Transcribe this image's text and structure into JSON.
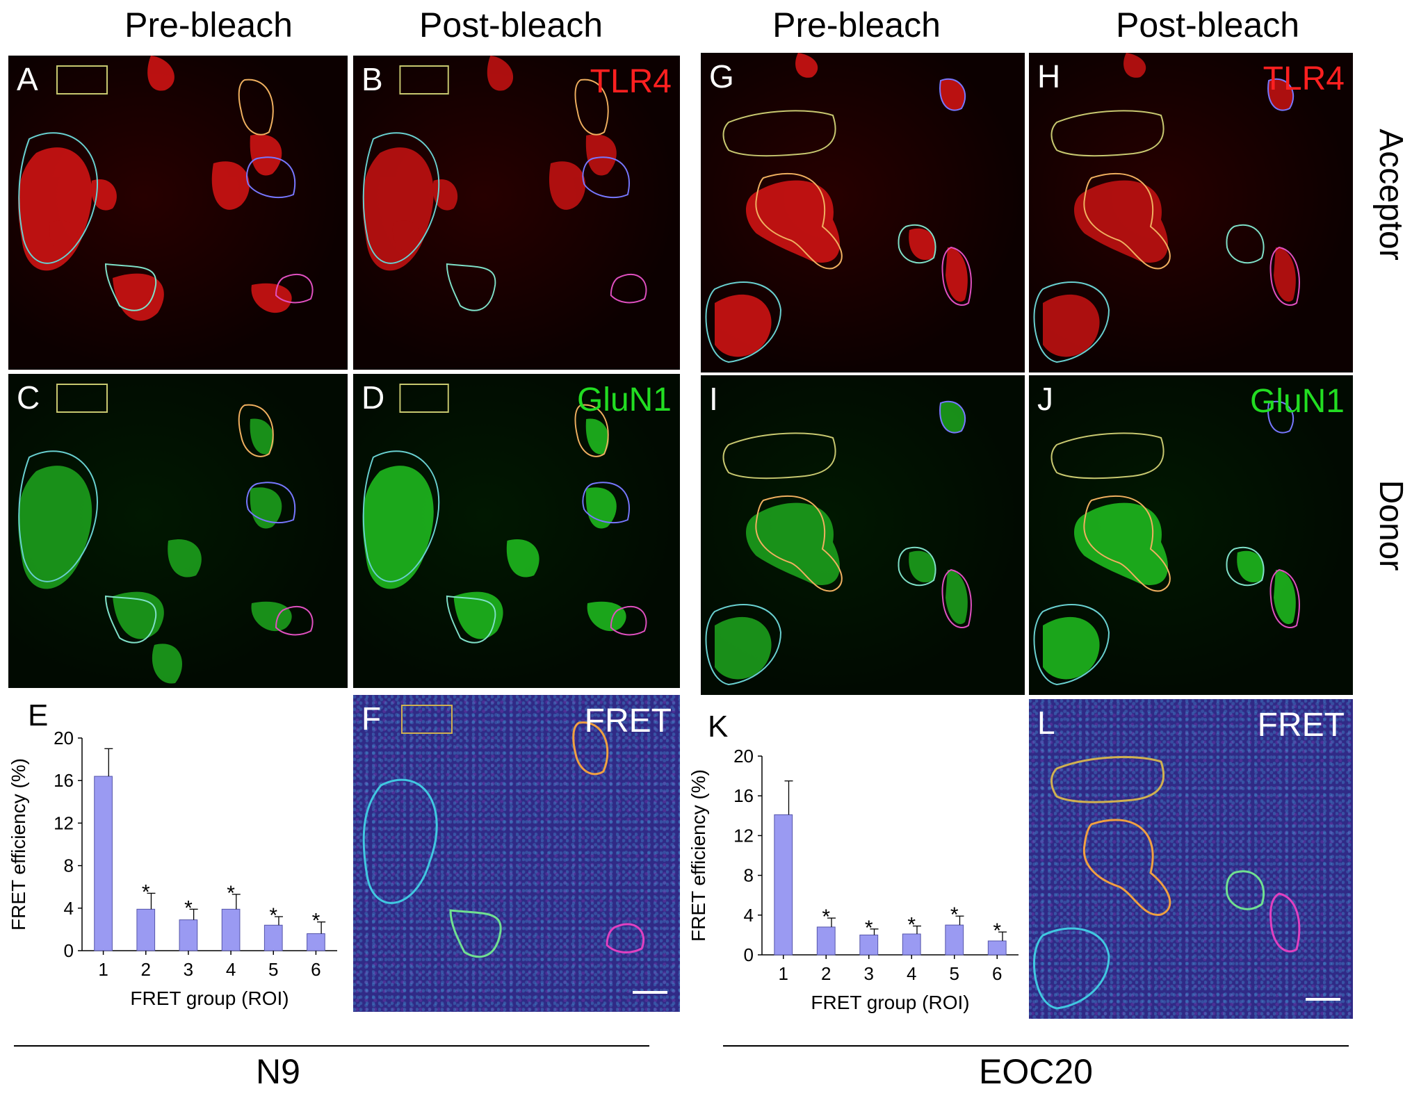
{
  "column_titles": [
    "Pre-bleach",
    "Post-bleach",
    "Pre-bleach",
    "Post-bleach"
  ],
  "row_labels": {
    "acceptor": "Acceptor",
    "donor": "Donor"
  },
  "panels": {
    "A": {
      "letter": "A"
    },
    "B": {
      "letter": "B",
      "tag": "TLR4"
    },
    "C": {
      "letter": "C"
    },
    "D": {
      "letter": "D",
      "tag": "GluN1"
    },
    "F": {
      "letter": "F",
      "tag": "FRET"
    },
    "G": {
      "letter": "G"
    },
    "H": {
      "letter": "H",
      "tag": "TLR4"
    },
    "I": {
      "letter": "I"
    },
    "J": {
      "letter": "J",
      "tag": "GluN1"
    },
    "L": {
      "letter": "L",
      "tag": "FRET"
    }
  },
  "colors": {
    "acceptor_channel": "#ff2020",
    "donor_channel": "#22dd22",
    "fret_background": "#302a86",
    "bar_fill": "#9a9af2",
    "roi_colors": [
      "#7fe0c8",
      "#7777ff",
      "#f0b060",
      "#69d0d0",
      "#e050c0",
      "#c8c870"
    ]
  },
  "groups": [
    {
      "label": "N9"
    },
    {
      "label": "EOC20"
    }
  ],
  "chart_data": [
    {
      "panel_letter": "E",
      "type": "bar",
      "xlabel": "FRET group (ROI)",
      "ylabel": "FRET efficiency (%)",
      "categories": [
        "1",
        "2",
        "3",
        "4",
        "5",
        "6"
      ],
      "values": [
        16.4,
        3.9,
        2.9,
        3.9,
        2.4,
        1.6
      ],
      "errors": [
        2.6,
        1.5,
        1.0,
        1.4,
        0.8,
        1.1
      ],
      "significance": [
        "",
        "*",
        "*",
        "*",
        "*",
        "*"
      ],
      "ylim": [
        0,
        20
      ],
      "yticks": [
        0,
        4,
        8,
        12,
        16,
        20
      ],
      "grid": false
    },
    {
      "panel_letter": "K",
      "type": "bar",
      "xlabel": "FRET group (ROI)",
      "ylabel": "FRET efficiency (%)",
      "categories": [
        "1",
        "2",
        "3",
        "4",
        "5",
        "6"
      ],
      "values": [
        14.1,
        2.8,
        2.0,
        2.1,
        3.0,
        1.4
      ],
      "errors": [
        3.4,
        0.9,
        0.6,
        0.8,
        0.9,
        0.9
      ],
      "significance": [
        "",
        "*",
        "*",
        "*",
        "*",
        "*"
      ],
      "ylim": [
        0,
        20
      ],
      "yticks": [
        0,
        4,
        8,
        12,
        16,
        20
      ],
      "grid": false
    }
  ]
}
